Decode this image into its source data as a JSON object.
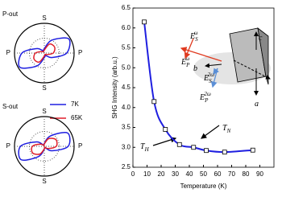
{
  "chart_data": [
    {
      "type": "polar",
      "title": "P-out",
      "rlim": [
        0,
        1
      ],
      "axis_labels": {
        "top": "S",
        "bottom": "S",
        "left": "P",
        "right": "P"
      },
      "theta": [
        0,
        30,
        60,
        90,
        120,
        150,
        180,
        210,
        240,
        270,
        300,
        330
      ],
      "series": [
        {
          "name": "7K",
          "color": "#1f1fe0",
          "values": [
            0.75,
            0.95,
            0.5,
            0.15,
            0.1,
            0.3,
            0.75,
            0.95,
            0.5,
            0.15,
            0.1,
            0.3
          ]
        },
        {
          "name": "65K",
          "color": "#e01f2a",
          "values": [
            0.3,
            0.4,
            0.35,
            0.1,
            0.05,
            0.1,
            0.3,
            0.4,
            0.35,
            0.1,
            0.05,
            0.1
          ]
        }
      ]
    },
    {
      "type": "polar",
      "title": "S-out",
      "rlim": [
        0,
        1
      ],
      "axis_labels": {
        "top": "S",
        "bottom": "S",
        "left": "P",
        "right": "P"
      },
      "theta": [
        0,
        30,
        60,
        90,
        120,
        150,
        180,
        210,
        240,
        270,
        300,
        330
      ],
      "series": [
        {
          "color": "#1f1fe0",
          "values": [
            0.8,
            0.9,
            0.4,
            0.1,
            0.05,
            0.3,
            0.8,
            0.9,
            0.4,
            0.1,
            0.05,
            0.3
          ]
        },
        {
          "color": "#e01f2a",
          "values": [
            0.4,
            0.45,
            0.3,
            0.08,
            0.03,
            0.15,
            0.4,
            0.45,
            0.3,
            0.08,
            0.03,
            0.15
          ]
        }
      ]
    },
    {
      "type": "line",
      "x_label": "Temperature (K)",
      "y_label": "SHG Intensity (arb.u.)",
      "color": "#1f1fe0",
      "x": [
        8,
        15,
        23,
        33,
        43,
        52,
        65,
        85
      ],
      "values": [
        6.15,
        4.15,
        3.45,
        3.07,
        3.0,
        2.92,
        2.88,
        2.93
      ],
      "xlim": [
        0,
        100
      ],
      "xticks": [
        0,
        10,
        20,
        30,
        40,
        50,
        60,
        70,
        80,
        90
      ],
      "ylim": [
        2.5,
        6.5
      ],
      "yticks": [
        2.5,
        {
          "value": 3,
          "label": "3.0"
        },
        3.5,
        {
          "value": 4,
          "label": "4.0"
        },
        4.5,
        {
          "value": 5,
          "label": "5.0"
        },
        5.5,
        {
          "value": 6,
          "label": "6.0"
        },
        6.5
      ],
      "annotations": [
        {
          "base": "T",
          "sub": "H"
        },
        {
          "base": "T",
          "sub": "N"
        }
      ],
      "inset_labels": [
        {
          "base": "E",
          "sub": "S",
          "sup": "ω"
        },
        {
          "base": "E",
          "sub": "P",
          "sup": "ω"
        },
        {
          "base": "b"
        },
        {
          "base": "E",
          "sub": "S",
          "sup": "2ω"
        },
        {
          "base": "E",
          "sub": "P",
          "sup": "2ω"
        },
        {
          "base": "c"
        },
        {
          "base": "a"
        }
      ]
    }
  ]
}
